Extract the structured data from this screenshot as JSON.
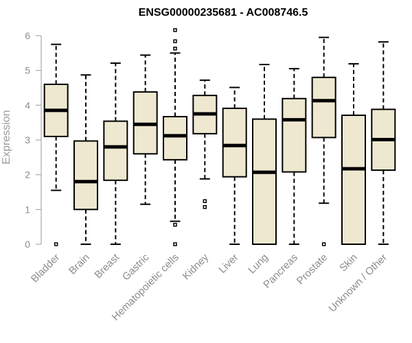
{
  "chart_data": {
    "type": "boxplot",
    "title": "ENSG00000235681 - AC008746.5",
    "xlabel": "",
    "ylabel": "Expression",
    "ylim": [
      0,
      6
    ],
    "yticks": [
      0,
      1,
      2,
      3,
      4,
      5,
      6
    ],
    "grid": false,
    "legend": "none",
    "colors": {
      "box_fill": "#eee8d0",
      "box_stroke": "#000000",
      "median": "#000000",
      "axis": "#999999",
      "tick_text": "#8c8c8c",
      "title": "#000000"
    },
    "categories": [
      "Bladder",
      "Brain",
      "Breast",
      "Gastric",
      "Hematopoietic cells",
      "Kidney",
      "Liver",
      "Lung",
      "Pancreas",
      "Prostate",
      "Skin",
      "Unknown / Other"
    ],
    "boxes": [
      {
        "category": "Bladder",
        "whisker_low": 1.55,
        "q1": 3.1,
        "median": 3.85,
        "q3": 4.6,
        "whisker_high": 5.75,
        "outliers": [
          0
        ]
      },
      {
        "category": "Brain",
        "whisker_low": 0,
        "q1": 1.0,
        "median": 1.8,
        "q3": 2.97,
        "whisker_high": 4.87,
        "outliers": []
      },
      {
        "category": "Breast",
        "whisker_low": 0,
        "q1": 1.84,
        "median": 2.8,
        "q3": 3.54,
        "whisker_high": 5.21,
        "outliers": []
      },
      {
        "category": "Gastric",
        "whisker_low": 1.15,
        "q1": 2.6,
        "median": 3.45,
        "q3": 4.38,
        "whisker_high": 5.44,
        "outliers": []
      },
      {
        "category": "Hematopoietic cells",
        "whisker_low": 0.66,
        "q1": 2.43,
        "median": 3.12,
        "q3": 3.67,
        "whisker_high": 5.5,
        "outliers": [
          0,
          0.56,
          5.63,
          5.84,
          6.16
        ]
      },
      {
        "category": "Kidney",
        "whisker_low": 1.88,
        "q1": 3.18,
        "median": 3.75,
        "q3": 4.28,
        "whisker_high": 4.72,
        "outliers": [
          1.07,
          1.24
        ]
      },
      {
        "category": "Liver",
        "whisker_low": 0,
        "q1": 1.94,
        "median": 2.84,
        "q3": 3.91,
        "whisker_high": 4.51,
        "outliers": []
      },
      {
        "category": "Lung",
        "whisker_low": 0,
        "q1": 0,
        "median": 2.07,
        "q3": 3.6,
        "whisker_high": 5.17,
        "outliers": []
      },
      {
        "category": "Pancreas",
        "whisker_low": 0,
        "q1": 2.08,
        "median": 3.58,
        "q3": 4.19,
        "whisker_high": 5.05,
        "outliers": []
      },
      {
        "category": "Prostate",
        "whisker_low": 1.18,
        "q1": 3.07,
        "median": 4.13,
        "q3": 4.8,
        "whisker_high": 5.95,
        "outliers": [
          0
        ]
      },
      {
        "category": "Skin",
        "whisker_low": 0,
        "q1": 0,
        "median": 2.17,
        "q3": 3.71,
        "whisker_high": 5.19,
        "outliers": []
      },
      {
        "category": "Unknown / Other",
        "whisker_low": 0,
        "q1": 2.13,
        "median": 3.01,
        "q3": 3.88,
        "whisker_high": 5.82,
        "outliers": []
      }
    ]
  }
}
